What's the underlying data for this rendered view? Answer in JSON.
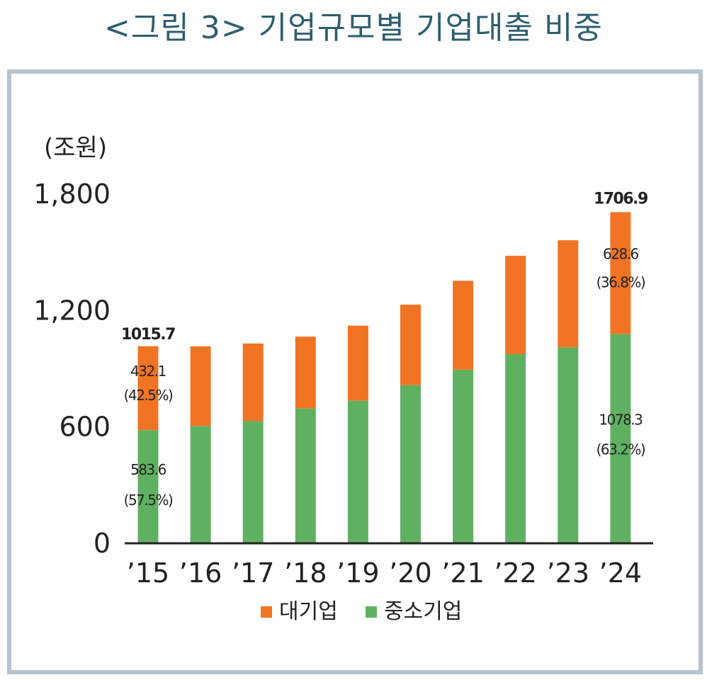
{
  "title": "<그림 3> 기업규모별 기업대출 비중",
  "unit_label": "(조원)",
  "colors": {
    "large": "#f07424",
    "sme": "#60b062",
    "title": "#2d5e6e",
    "frame": "#b7c2cf"
  },
  "chart_data": {
    "type": "bar",
    "stacked": true,
    "categories": [
      "’15",
      "’16",
      "’17",
      "’18",
      "’19",
      "’20",
      "’21",
      "’22",
      "’23",
      "’24"
    ],
    "series": [
      {
        "name": "중소기업",
        "color": "#60b062",
        "values": [
          583.6,
          605,
          630,
          695,
          735,
          815,
          895,
          975,
          1010,
          1078.3
        ]
      },
      {
        "name": "대기업",
        "color": "#f07424",
        "values": [
          432.1,
          410,
          400,
          370,
          387,
          415,
          458,
          507,
          552,
          628.6
        ]
      }
    ],
    "ylim": [
      0,
      1800
    ],
    "yticks": [
      {
        "v": 0,
        "label": "0"
      },
      {
        "v": 600,
        "label": "600"
      },
      {
        "v": 1200,
        "label": "1,200"
      },
      {
        "v": 1800,
        "label": "1,800"
      }
    ],
    "ylabel": "(조원)",
    "legend": [
      "대기업",
      "중소기업"
    ],
    "legend_position": "bottom",
    "grid": false,
    "annotations": {
      "total_15": "1015.7",
      "large_15": "432.1",
      "large_15_pct": "(42.5%)",
      "sme_15": "583.6",
      "sme_15_pct": "(57.5%)",
      "total_24": "1706.9",
      "large_24": "628.6",
      "large_24_pct": "(36.8%)",
      "sme_24": "1078.3",
      "sme_24_pct": "(63.2%)"
    }
  }
}
